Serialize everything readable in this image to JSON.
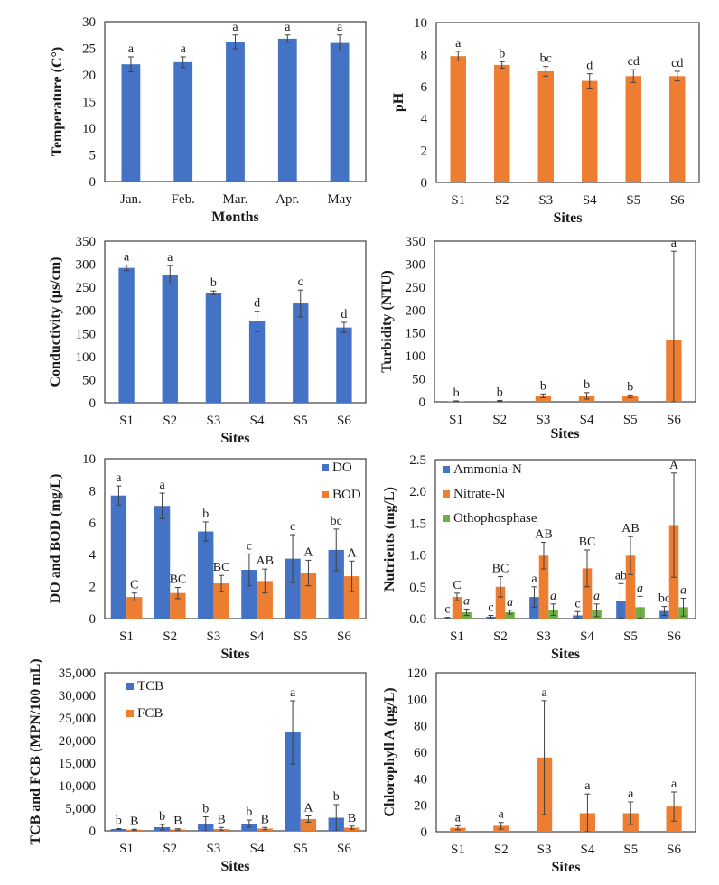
{
  "colors": {
    "blue": "#4472C4",
    "orange": "#ED7D31",
    "green": "#70AD47"
  },
  "chart_data": [
    {
      "id": "temperature",
      "type": "bar",
      "title": "",
      "xlabel": "Months",
      "ylabel": "Temperature (C°)",
      "ylim": [
        0,
        30
      ],
      "yticks": [
        0,
        5,
        10,
        15,
        20,
        25,
        30
      ],
      "ytick_labels": [
        "0",
        "5",
        "10",
        "15",
        "20",
        "25",
        "30"
      ],
      "categories": [
        "Jan.",
        "Feb.",
        "Mar.",
        "Apr.",
        "May"
      ],
      "grid": false,
      "legend": null,
      "series": [
        {
          "name": "Temperature",
          "color": "blue",
          "values": [
            22.0,
            22.4,
            26.2,
            26.8,
            26.0
          ],
          "errors": [
            1.4,
            1.0,
            1.3,
            0.7,
            1.5
          ],
          "sig": [
            "a",
            "a",
            "a",
            "a",
            "a"
          ],
          "sig_italic": false
        }
      ]
    },
    {
      "id": "ph",
      "type": "bar",
      "title": "",
      "xlabel": "Sites",
      "ylabel": "pH",
      "ylim": [
        0,
        10
      ],
      "yticks": [
        0,
        2,
        4,
        6,
        8,
        10
      ],
      "ytick_labels": [
        "0",
        "2",
        "4",
        "6",
        "8",
        "10"
      ],
      "categories": [
        "S1",
        "S2",
        "S3",
        "S4",
        "S5",
        "S6"
      ],
      "grid": false,
      "legend": null,
      "series": [
        {
          "name": "pH",
          "color": "orange",
          "values": [
            7.9,
            7.35,
            6.95,
            6.35,
            6.65,
            6.65
          ],
          "errors": [
            0.3,
            0.2,
            0.3,
            0.45,
            0.4,
            0.3
          ],
          "sig": [
            "a",
            "b",
            "bc",
            "d",
            "cd",
            "cd"
          ],
          "sig_italic": false
        }
      ]
    },
    {
      "id": "conductivity",
      "type": "bar",
      "title": "",
      "xlabel": "Sites",
      "ylabel": "Conductivity (µs/cm)",
      "ylim": [
        0,
        350
      ],
      "yticks": [
        0,
        50,
        100,
        150,
        200,
        250,
        300,
        350
      ],
      "ytick_labels": [
        "0",
        "50",
        "100",
        "150",
        "200",
        "250",
        "300",
        "350"
      ],
      "categories": [
        "S1",
        "S2",
        "S3",
        "S4",
        "S5",
        "S6"
      ],
      "grid": false,
      "legend": null,
      "series": [
        {
          "name": "Conductivity",
          "color": "blue",
          "values": [
            292,
            277,
            238,
            176,
            215,
            163
          ],
          "errors": [
            6,
            20,
            4,
            22,
            29,
            11
          ],
          "sig": [
            "a",
            "a",
            "b",
            "d",
            "c",
            "d"
          ],
          "sig_italic": false
        }
      ]
    },
    {
      "id": "turbidity",
      "type": "bar",
      "title": "",
      "xlabel": "Sites",
      "ylabel": "Turbidity (NTU)",
      "ylim": [
        0,
        350
      ],
      "yticks": [
        0,
        50,
        100,
        150,
        200,
        250,
        300,
        350
      ],
      "ytick_labels": [
        "0",
        "50",
        "100",
        "150",
        "200",
        "250",
        "300",
        "350"
      ],
      "categories": [
        "S1",
        "S2",
        "S3",
        "S4",
        "S5",
        "S6"
      ],
      "grid": false,
      "legend": null,
      "series": [
        {
          "name": "Turbidity",
          "color": "orange",
          "values": [
            1,
            2,
            13,
            13,
            12,
            135
          ],
          "errors": [
            1,
            1,
            4,
            7,
            3,
            193
          ],
          "sig": [
            "b",
            "b",
            "b",
            "b",
            "b",
            "a"
          ],
          "sig_italic": false
        }
      ]
    },
    {
      "id": "do-bod",
      "type": "bar",
      "title": "",
      "xlabel": "Sites",
      "ylabel": "DO and BOD (mg/L)",
      "ylim": [
        0,
        10
      ],
      "yticks": [
        0,
        2,
        4,
        6,
        8,
        10
      ],
      "ytick_labels": [
        "0",
        "2",
        "4",
        "6",
        "8",
        "10"
      ],
      "categories": [
        "S1",
        "S2",
        "S3",
        "S4",
        "S5",
        "S6"
      ],
      "grid": false,
      "legend": "top-right",
      "series": [
        {
          "name": "DO",
          "color": "blue",
          "values": [
            7.7,
            7.05,
            5.45,
            3.05,
            3.75,
            4.3
          ],
          "errors": [
            0.6,
            0.8,
            0.6,
            1.0,
            1.5,
            1.3
          ],
          "sig": [
            "a",
            "a",
            "b",
            "c",
            "c",
            "bc"
          ],
          "sig_italic": false
        },
        {
          "name": "BOD",
          "color": "orange",
          "values": [
            1.35,
            1.6,
            2.2,
            2.35,
            2.85,
            2.65
          ],
          "errors": [
            0.25,
            0.35,
            0.5,
            0.75,
            0.8,
            0.95
          ],
          "sig": [
            "C",
            "BC",
            "BC",
            "AB",
            "A",
            "A"
          ],
          "sig_italic": false
        }
      ]
    },
    {
      "id": "nutrients",
      "type": "bar",
      "title": "",
      "xlabel": "Sites",
      "ylabel": "Nutrients (mg/L)",
      "ylim": [
        0,
        2.5
      ],
      "yticks": [
        0,
        0.5,
        1.0,
        1.5,
        2.0,
        2.5
      ],
      "ytick_labels": [
        "0.0",
        "0.5",
        "1.0",
        "1.5",
        "2.0",
        "2.5"
      ],
      "categories": [
        "S1",
        "S2",
        "S3",
        "S4",
        "S5",
        "S6"
      ],
      "grid": false,
      "legend": "top-left",
      "series": [
        {
          "name": "Ammonia-N",
          "color": "blue",
          "values": [
            0.01,
            0.03,
            0.34,
            0.05,
            0.28,
            0.12
          ],
          "errors": [
            0.01,
            0.02,
            0.16,
            0.06,
            0.27,
            0.07
          ],
          "sig": [
            "c",
            "c",
            "a",
            "c",
            "ab",
            "bc"
          ],
          "sig_italic": false
        },
        {
          "name": "Nitrate-N",
          "color": "orange",
          "values": [
            0.34,
            0.5,
            0.99,
            0.79,
            0.99,
            1.47
          ],
          "errors": [
            0.06,
            0.16,
            0.21,
            0.29,
            0.3,
            0.82
          ],
          "sig": [
            "C",
            "BC",
            "AB",
            "BC",
            "AB",
            "A"
          ],
          "sig_italic": false
        },
        {
          "name": "Othophosphase",
          "color": "green",
          "values": [
            0.1,
            0.1,
            0.14,
            0.13,
            0.18,
            0.18
          ],
          "errors": [
            0.05,
            0.03,
            0.09,
            0.1,
            0.17,
            0.14
          ],
          "sig": [
            "a",
            "a",
            "a",
            "a",
            "a",
            "a"
          ],
          "sig_italic": true
        }
      ]
    },
    {
      "id": "tcb-fcb",
      "type": "bar",
      "title": "",
      "xlabel": "Sites",
      "ylabel": "TCB and FCB  (MPN/100 mL)",
      "ylim": [
        0,
        35000
      ],
      "yticks": [
        0,
        5000,
        10000,
        15000,
        20000,
        25000,
        30000,
        35000
      ],
      "ytick_labels": [
        "0",
        "5,000",
        "10,000",
        "15,000",
        "20,000",
        "25,000",
        "30,000",
        "35,000"
      ],
      "categories": [
        "S1",
        "S2",
        "S3",
        "S4",
        "S5",
        "S6"
      ],
      "grid": false,
      "legend": "top-left",
      "series": [
        {
          "name": "TCB",
          "color": "blue",
          "values": [
            400,
            800,
            1400,
            1600,
            21800,
            2900
          ],
          "errors": [
            100,
            600,
            1700,
            800,
            7000,
            2900
          ],
          "sig": [
            "b",
            "b",
            "b",
            "b",
            "a",
            "b"
          ],
          "sig_italic": false
        },
        {
          "name": "FCB",
          "color": "orange",
          "values": [
            250,
            300,
            400,
            500,
            2600,
            700
          ],
          "errors": [
            100,
            150,
            350,
            250,
            700,
            350
          ],
          "sig": [
            "B",
            "B",
            "B",
            "B",
            "A",
            "B"
          ],
          "sig_italic": false
        }
      ]
    },
    {
      "id": "chlorophyll",
      "type": "bar",
      "title": "",
      "xlabel": "Sites",
      "ylabel": "Chlorophyll A (µg/L)",
      "ylim": [
        0,
        120
      ],
      "yticks": [
        0,
        20,
        40,
        60,
        80,
        100,
        120
      ],
      "ytick_labels": [
        "0",
        "20",
        "40",
        "60",
        "80",
        "100",
        "120"
      ],
      "categories": [
        "S1",
        "S2",
        "S3",
        "S4",
        "S5",
        "S6"
      ],
      "grid": false,
      "legend": null,
      "series": [
        {
          "name": "Chlorophyll A",
          "color": "orange",
          "values": [
            3,
            4.5,
            56,
            14,
            14,
            19
          ],
          "errors": [
            1.5,
            2.5,
            43,
            14.5,
            8.5,
            11
          ],
          "sig": [
            "a",
            "a",
            "a",
            "a",
            "a",
            "a"
          ],
          "sig_italic": false
        }
      ]
    }
  ]
}
